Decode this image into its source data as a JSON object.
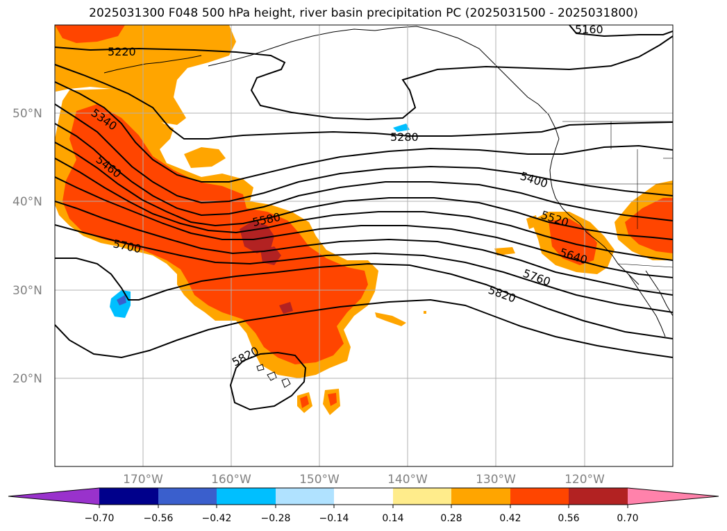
{
  "title": "2025031300 F048 500 hPa height, river basin precipitation PC (2025031500 - 2025031800)",
  "latitude_labels": [
    "50°N",
    "40°N",
    "30°N",
    "20°N"
  ],
  "longitude_labels": [
    "170°W",
    "160°W",
    "150°W",
    "140°W",
    "130°W",
    "120°W"
  ],
  "contour_labels": [
    "5160",
    "5220",
    "5280",
    "5340",
    "5400",
    "5460",
    "5520",
    "5580",
    "5640",
    "5700",
    "5760",
    "5820",
    "5820"
  ],
  "colorbar": {
    "tick_labels": [
      "−0.70",
      "−0.56",
      "−0.42",
      "−0.28",
      "−0.14",
      "0.14",
      "0.28",
      "0.42",
      "0.56",
      "0.70"
    ],
    "colors": [
      "#9932cc",
      "#00008b",
      "#3a5fcd",
      "#00bfff",
      "#b0e2ff",
      "#ffffff",
      "#ffec8b",
      "#ffa500",
      "#ff4500",
      "#b22222",
      "#ff82ab"
    ],
    "extend": "both"
  },
  "colors": {
    "positive_low": "#ffa500",
    "positive_mid": "#ff4500",
    "positive_high": "#b22222",
    "negative": "#00bfff",
    "gridline": "#b0b0b0"
  }
}
